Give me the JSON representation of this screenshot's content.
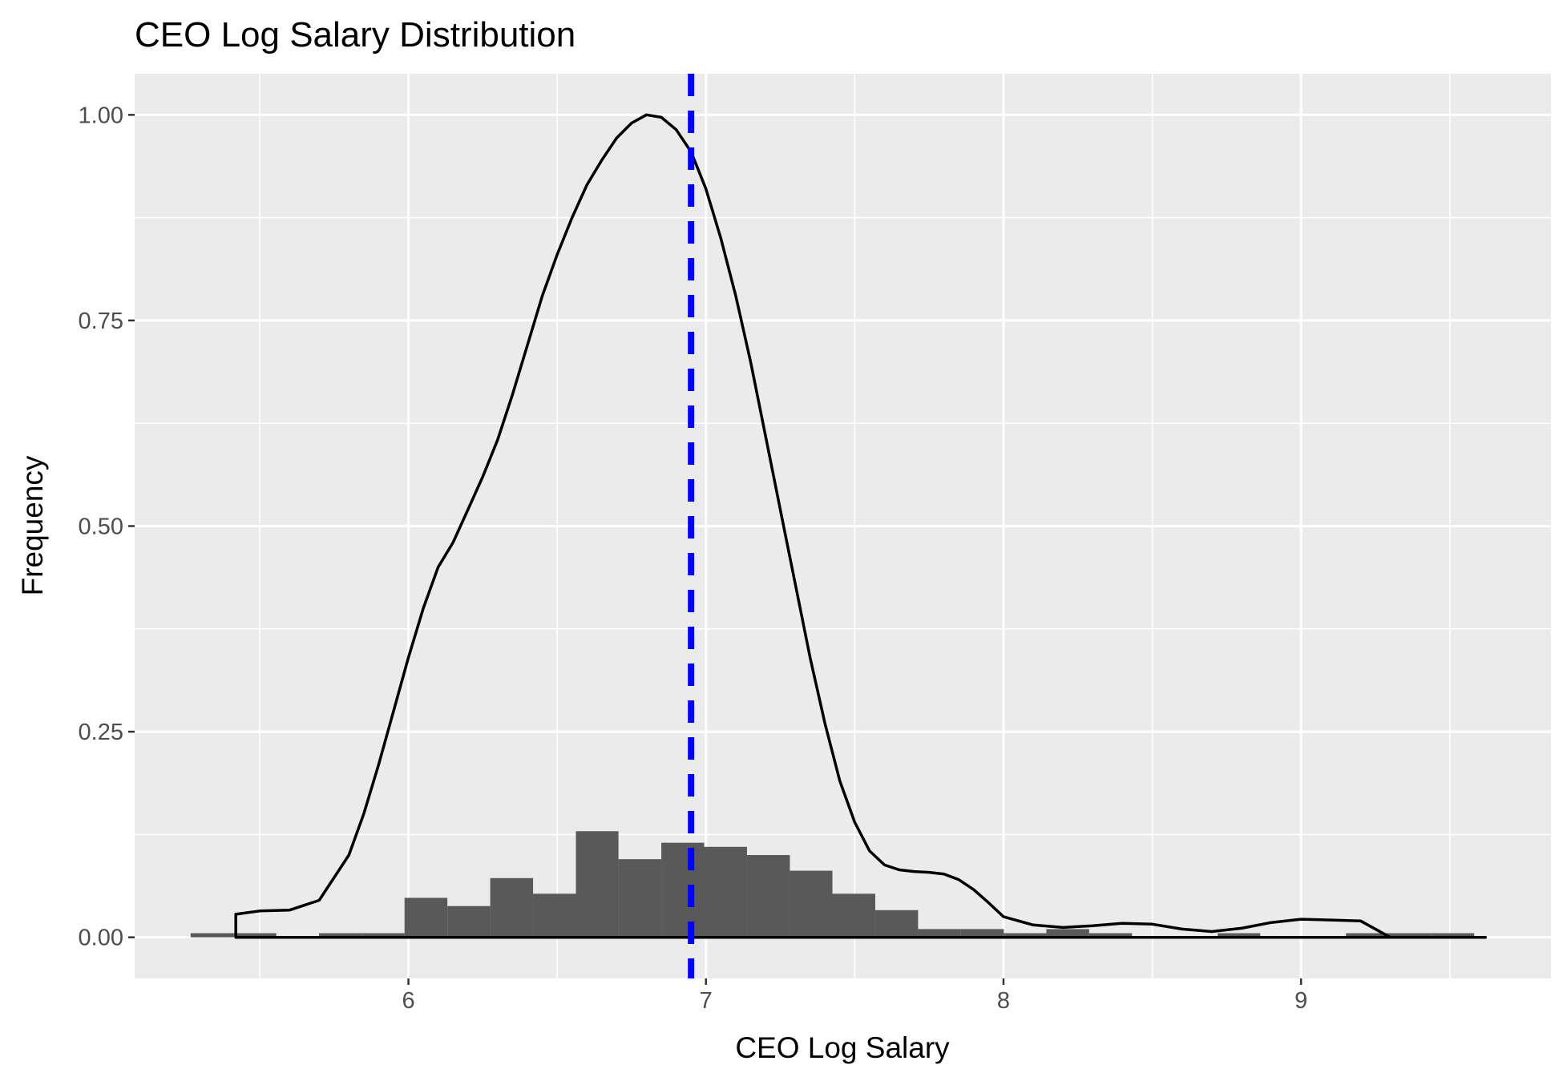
{
  "chart_data": {
    "type": "histogram",
    "title": "CEO Log Salary Distribution",
    "xlabel": "CEO Log Salary",
    "ylabel": "Frequency",
    "xlim": [
      5.08,
      9.84
    ],
    "ylim": [
      -0.05,
      1.05
    ],
    "x_ticks": [
      {
        "value": 6,
        "label": "6"
      },
      {
        "value": 7,
        "label": "7"
      },
      {
        "value": 8,
        "label": "8"
      },
      {
        "value": 9,
        "label": "9"
      }
    ],
    "y_ticks": [
      {
        "value": 0.0,
        "label": "0.00"
      },
      {
        "value": 0.25,
        "label": "0.25"
      },
      {
        "value": 0.5,
        "label": "0.50"
      },
      {
        "value": 0.75,
        "label": "0.75"
      },
      {
        "value": 1.0,
        "label": "1.00"
      }
    ],
    "grid": true,
    "legend": "none",
    "histogram": {
      "bin_width": 0.1438,
      "bins": [
        {
          "x0": 5.268,
          "x1": 5.412,
          "value": 0.005
        },
        {
          "x0": 5.412,
          "x1": 5.556,
          "value": 0.005
        },
        {
          "x0": 5.7,
          "x1": 5.844,
          "value": 0.005
        },
        {
          "x0": 5.844,
          "x1": 5.987,
          "value": 0.005
        },
        {
          "x0": 5.987,
          "x1": 6.131,
          "value": 0.048
        },
        {
          "x0": 6.131,
          "x1": 6.275,
          "value": 0.038
        },
        {
          "x0": 6.275,
          "x1": 6.419,
          "value": 0.072
        },
        {
          "x0": 6.419,
          "x1": 6.563,
          "value": 0.053
        },
        {
          "x0": 6.563,
          "x1": 6.706,
          "value": 0.129
        },
        {
          "x0": 6.706,
          "x1": 6.85,
          "value": 0.095
        },
        {
          "x0": 6.85,
          "x1": 6.994,
          "value": 0.115
        },
        {
          "x0": 6.994,
          "x1": 7.138,
          "value": 0.11
        },
        {
          "x0": 7.138,
          "x1": 7.282,
          "value": 0.1
        },
        {
          "x0": 7.282,
          "x1": 7.425,
          "value": 0.081
        },
        {
          "x0": 7.425,
          "x1": 7.569,
          "value": 0.053
        },
        {
          "x0": 7.569,
          "x1": 7.713,
          "value": 0.033
        },
        {
          "x0": 7.713,
          "x1": 7.857,
          "value": 0.01
        },
        {
          "x0": 7.857,
          "x1": 8.001,
          "value": 0.01
        },
        {
          "x0": 8.001,
          "x1": 8.144,
          "value": 0.005
        },
        {
          "x0": 8.144,
          "x1": 8.288,
          "value": 0.01
        },
        {
          "x0": 8.288,
          "x1": 8.432,
          "value": 0.005
        },
        {
          "x0": 8.72,
          "x1": 8.863,
          "value": 0.005
        },
        {
          "x0": 9.151,
          "x1": 9.295,
          "value": 0.005
        },
        {
          "x0": 9.295,
          "x1": 9.438,
          "value": 0.005
        },
        {
          "x0": 9.438,
          "x1": 9.582,
          "value": 0.005
        }
      ],
      "fill": "#595959"
    },
    "density": {
      "color": "#000000",
      "x": [
        5.42,
        5.42,
        5.5,
        5.6,
        5.7,
        5.8,
        5.85,
        5.9,
        5.95,
        6.0,
        6.05,
        6.1,
        6.15,
        6.2,
        6.25,
        6.3,
        6.35,
        6.4,
        6.45,
        6.5,
        6.55,
        6.6,
        6.65,
        6.7,
        6.75,
        6.8,
        6.85,
        6.9,
        6.95,
        7.0,
        7.05,
        7.1,
        7.15,
        7.2,
        7.25,
        7.3,
        7.35,
        7.4,
        7.45,
        7.5,
        7.55,
        7.6,
        7.65,
        7.7,
        7.75,
        7.8,
        7.85,
        7.9,
        7.95,
        8.0,
        8.1,
        8.2,
        8.3,
        8.4,
        8.5,
        8.6,
        8.7,
        8.8,
        8.9,
        9.0,
        9.1,
        9.2,
        9.3,
        9.4,
        9.5,
        9.62,
        9.62
      ],
      "y": [
        0.0,
        0.028,
        0.032,
        0.033,
        0.045,
        0.1,
        0.15,
        0.21,
        0.275,
        0.34,
        0.4,
        0.45,
        0.48,
        0.52,
        0.56,
        0.605,
        0.66,
        0.72,
        0.78,
        0.83,
        0.875,
        0.915,
        0.945,
        0.972,
        0.99,
        1.0,
        0.997,
        0.982,
        0.955,
        0.91,
        0.85,
        0.78,
        0.7,
        0.61,
        0.52,
        0.43,
        0.34,
        0.26,
        0.19,
        0.14,
        0.105,
        0.088,
        0.082,
        0.08,
        0.079,
        0.077,
        0.07,
        0.058,
        0.042,
        0.025,
        0.015,
        0.012,
        0.014,
        0.017,
        0.016,
        0.01,
        0.007,
        0.011,
        0.018,
        0.022,
        0.021,
        0.02,
        0.0,
        0.0,
        0.0,
        0.0,
        0.0
      ]
    },
    "mean_line": {
      "x": 6.95,
      "color": "#0000ff",
      "style": "dashed"
    }
  }
}
